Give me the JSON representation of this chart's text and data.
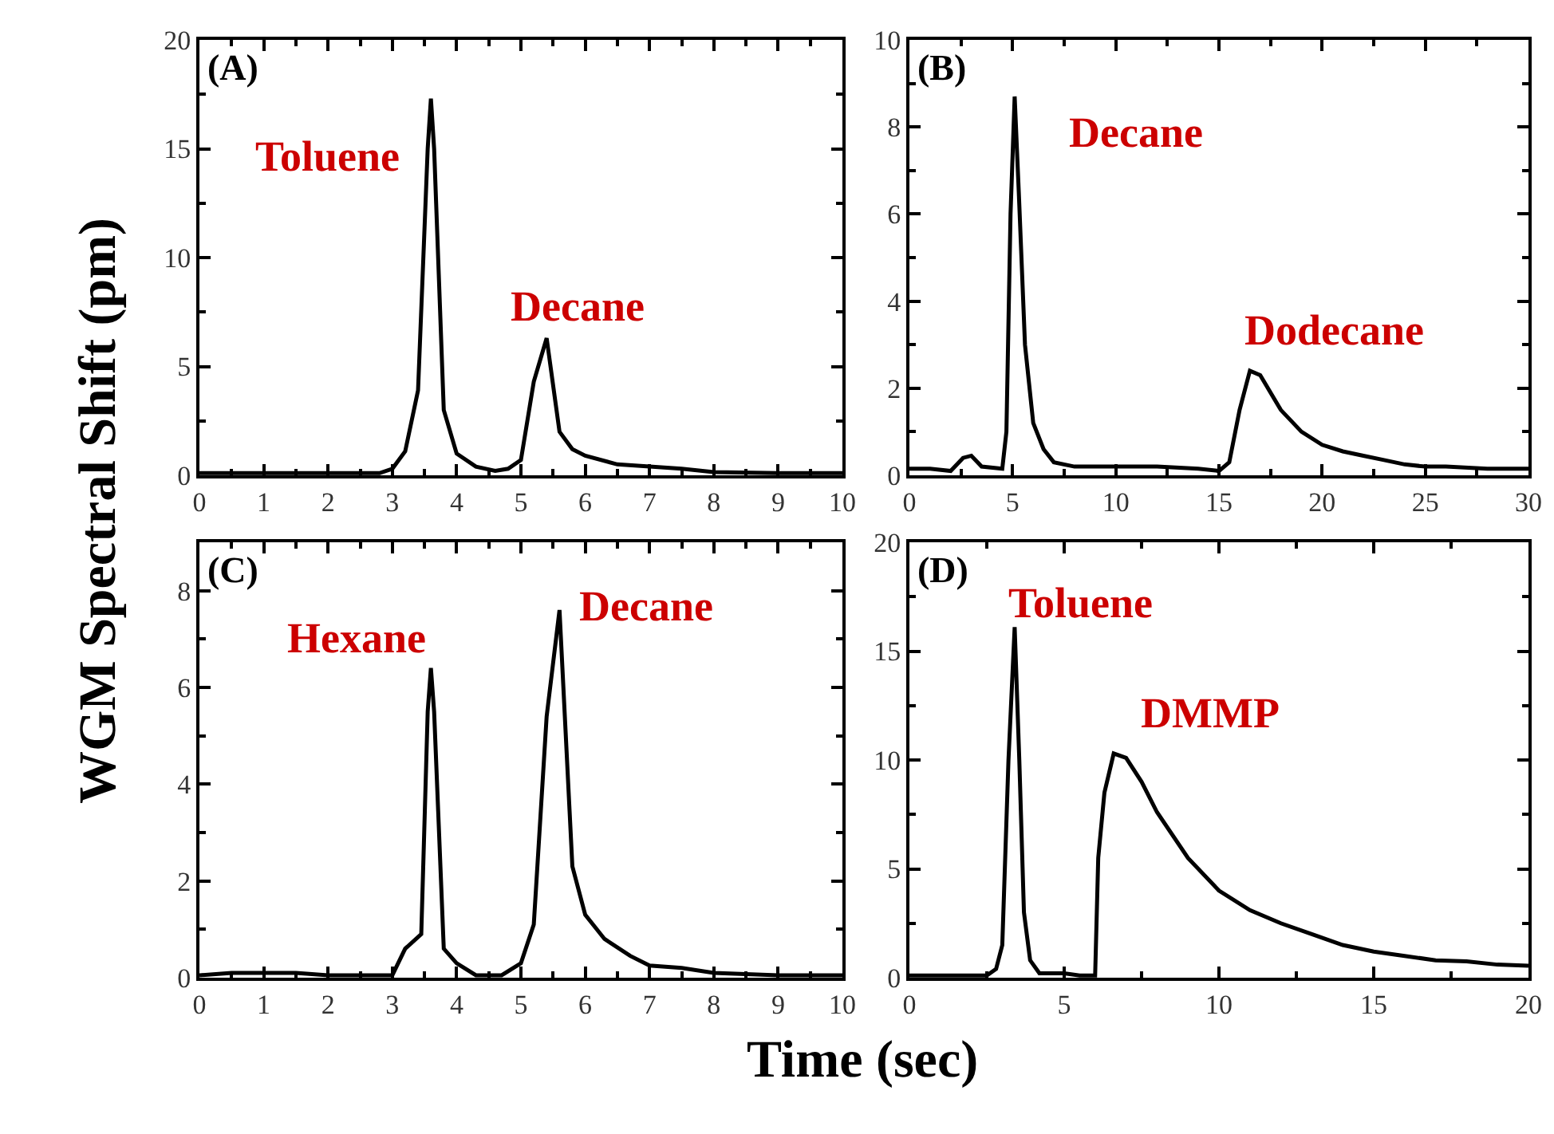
{
  "chart_data": [
    {
      "type": "line",
      "xlabel": "Time (sec)",
      "ylabel": "WGM Spectral Shift (pm)",
      "color": "#000000",
      "x": [
        0,
        1,
        2,
        2.8,
        3.0,
        3.2,
        3.4,
        3.55,
        3.6,
        3.65,
        3.8,
        4.0,
        4.3,
        4.6,
        4.8,
        5.0,
        5.2,
        5.4,
        5.6,
        5.8,
        6.0,
        6.5,
        7,
        7.5,
        8,
        9,
        10
      ],
      "values": [
        0.1,
        0.1,
        0.1,
        0.1,
        0.3,
        1.1,
        3.9,
        15,
        17.3,
        15,
        3.0,
        1.0,
        0.4,
        0.2,
        0.3,
        0.7,
        4.3,
        6.3,
        2.0,
        1.2,
        0.9,
        0.5,
        0.4,
        0.3,
        0.15,
        0.1,
        0.1
      ],
      "xlim": [
        0,
        10
      ],
      "xticks": [
        0,
        1,
        2,
        3,
        4,
        5,
        6,
        7,
        8,
        9,
        10
      ],
      "ylim": [
        0,
        20
      ],
      "yticks": [
        0,
        5,
        10,
        15,
        20
      ],
      "annotations": [
        "(A)",
        "Toluene",
        "Decane"
      ]
    },
    {
      "type": "line",
      "color": "#000000",
      "x": [
        0,
        1,
        2,
        2.6,
        3.0,
        3.5,
        4.5,
        4.7,
        4.9,
        5.1,
        5.3,
        5.6,
        6,
        6.5,
        7,
        8,
        10,
        12,
        14,
        15,
        15.5,
        16,
        16.5,
        17,
        18,
        19,
        20,
        21,
        22,
        23,
        24,
        25,
        26,
        28,
        30
      ],
      "values": [
        0.15,
        0.15,
        0.1,
        0.4,
        0.45,
        0.2,
        0.15,
        1.0,
        6.0,
        8.7,
        6.5,
        3.0,
        1.2,
        0.6,
        0.3,
        0.2,
        0.2,
        0.2,
        0.15,
        0.1,
        0.3,
        1.5,
        2.4,
        2.3,
        1.5,
        1.0,
        0.7,
        0.55,
        0.45,
        0.35,
        0.25,
        0.2,
        0.2,
        0.15,
        0.15
      ],
      "xlim": [
        0,
        30
      ],
      "xticks": [
        0,
        5,
        10,
        15,
        20,
        25,
        30
      ],
      "ylim": [
        0,
        10
      ],
      "yticks": [
        0,
        2,
        4,
        6,
        8,
        10
      ],
      "annotations": [
        "(B)",
        "Decane",
        "Dodecane"
      ]
    },
    {
      "type": "line",
      "color": "#000000",
      "x": [
        0,
        0.5,
        1.5,
        2,
        2.7,
        3.0,
        3.2,
        3.45,
        3.55,
        3.6,
        3.65,
        3.8,
        4.0,
        4.3,
        4.7,
        5.0,
        5.2,
        5.4,
        5.6,
        5.8,
        6.0,
        6.3,
        6.7,
        7,
        7.5,
        8,
        9,
        10
      ],
      "values": [
        0.05,
        0.1,
        0.1,
        0.05,
        0.05,
        0.05,
        0.6,
        0.9,
        5.5,
        6.4,
        5.5,
        0.6,
        0.3,
        0.05,
        0.05,
        0.3,
        1.1,
        5.4,
        7.6,
        2.3,
        1.3,
        0.8,
        0.45,
        0.25,
        0.2,
        0.1,
        0.05,
        0.05
      ],
      "xlim": [
        0,
        10
      ],
      "xticks": [
        0,
        1,
        2,
        3,
        4,
        5,
        6,
        7,
        8,
        9,
        10
      ],
      "ylim": [
        0,
        9
      ],
      "yticks": [
        0,
        2,
        4,
        6,
        8
      ],
      "annotations": [
        "(C)",
        "Hexane",
        "Decane"
      ]
    },
    {
      "type": "line",
      "color": "#000000",
      "x": [
        0,
        2.5,
        2.8,
        3.0,
        3.2,
        3.4,
        3.55,
        3.7,
        3.9,
        4.2,
        5,
        5.5,
        6.0,
        6.1,
        6.3,
        6.6,
        7,
        7.5,
        8,
        9,
        10,
        11,
        12,
        13,
        14,
        15,
        16,
        17,
        18,
        19,
        20
      ],
      "values": [
        0.1,
        0.1,
        0.4,
        1.5,
        10,
        16.1,
        10,
        3,
        0.8,
        0.2,
        0.2,
        0.1,
        0.1,
        5.5,
        8.5,
        10.3,
        10.1,
        9.0,
        7.6,
        5.5,
        4.0,
        3.1,
        2.5,
        2.0,
        1.5,
        1.2,
        1.0,
        0.8,
        0.75,
        0.6,
        0.55
      ],
      "xlim": [
        0,
        20
      ],
      "xticks": [
        0,
        5,
        10,
        15,
        20
      ],
      "ylim": [
        0,
        20
      ],
      "yticks": [
        0,
        5,
        10,
        15,
        20
      ],
      "annotations": [
        "(D)",
        "Toluene",
        "DMMP"
      ]
    }
  ]
}
